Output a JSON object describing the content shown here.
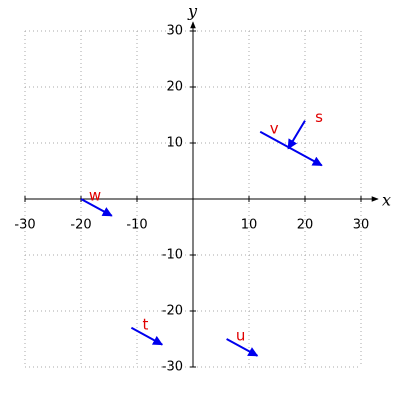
{
  "chart_data": {
    "type": "vector",
    "x_label": "x",
    "y_label": "y",
    "xlim": [
      -30,
      30
    ],
    "ylim": [
      -30,
      30
    ],
    "xticks": [
      -30,
      -20,
      -10,
      10,
      20,
      30
    ],
    "yticks": [
      -30,
      -20,
      -10,
      10,
      20,
      30
    ],
    "grid": true,
    "color": "#0000ee",
    "label_color": "#e00000",
    "series": [
      {
        "name": "v",
        "x": [
          12,
          23
        ],
        "y": [
          12,
          6
        ]
      },
      {
        "name": "s",
        "x": [
          20,
          17
        ],
        "y": [
          14,
          9
        ]
      },
      {
        "name": "w",
        "x": [
          -20,
          -14.5
        ],
        "y": [
          0,
          -3
        ]
      },
      {
        "name": "t",
        "x": [
          -11,
          -5.5
        ],
        "y": [
          -23,
          -26
        ]
      },
      {
        "name": "u",
        "x": [
          6,
          11.5
        ],
        "y": [
          -25,
          -28
        ]
      }
    ]
  }
}
